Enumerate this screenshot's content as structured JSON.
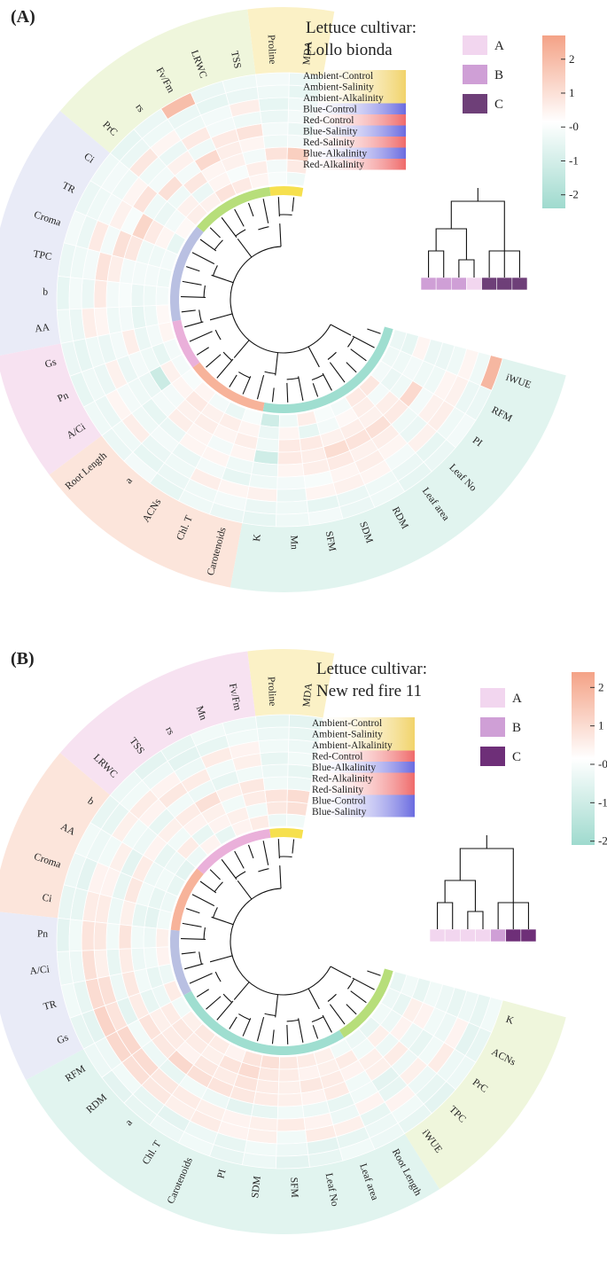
{
  "chart_data": [
    {
      "type": "heatmap",
      "panel": "(A)",
      "title_line1": "Lettuce cultivar:",
      "title_line2": "Lollo bionda",
      "treatments": [
        {
          "name": "Ambient-Control",
          "color": "#f1d36a"
        },
        {
          "name": "Ambient-Salinity",
          "color": "#f1d36a"
        },
        {
          "name": "Ambient-Alkalinity",
          "color": "#f1d36a"
        },
        {
          "name": "Blue-Control",
          "color": "#6a6be0"
        },
        {
          "name": "Red-Control",
          "color": "#ef6a6a"
        },
        {
          "name": "Blue-Salinity",
          "color": "#6a6be0"
        },
        {
          "name": "Red-Salinity",
          "color": "#ef6a6a"
        },
        {
          "name": "Blue-Alkalinity",
          "color": "#6a6be0"
        },
        {
          "name": "Red-Alkalinity",
          "color": "#ef6a6a"
        }
      ],
      "variables": [
        "MDA",
        "Proline",
        "TSS",
        "LRWC",
        "Fv/Fm",
        "rs",
        "PrC",
        "Ci",
        "TR",
        "Croma",
        "TPC",
        "b",
        "AA",
        "Gs",
        "Pn",
        "A/Ci",
        "Root Length",
        "a",
        "ACNs",
        "Chl. T",
        "Carotenoids",
        "K",
        "Mn",
        "SFM",
        "SDM",
        "RDM",
        "Leaf area",
        "Leaf No",
        "PI",
        "RFM",
        "iWUE"
      ],
      "variable_clusters": [
        {
          "count": 2,
          "color": "#f6e04e",
          "sector": "#fbf1c6"
        },
        {
          "count": 5,
          "color": "#b7de7a",
          "sector": "#eff6dc"
        },
        {
          "count": 6,
          "color": "#b9c0e2",
          "sector": "#e9ebf7"
        },
        {
          "count": 3,
          "color": "#eab0da",
          "sector": "#f7e2f1"
        },
        {
          "count": 5,
          "color": "#f7b39a",
          "sector": "#fce5db"
        },
        {
          "count": 10,
          "color": "#9fded0",
          "sector": "#e1f4ef"
        }
      ],
      "treatment_groups": [
        {
          "name": "A",
          "color": "#f2d6ef"
        },
        {
          "name": "B",
          "color": "#cf9fd6"
        },
        {
          "name": "C",
          "color": "#6e3f78"
        }
      ],
      "group_strip": [
        "B",
        "B",
        "B",
        "A",
        "C",
        "C",
        "C"
      ],
      "colorbar": {
        "min": -2.4,
        "max": 2.7,
        "ticks": [
          2,
          1,
          0,
          -1,
          -2
        ],
        "tick_labels": [
          "2",
          "1",
          "-0",
          "-1",
          "-2"
        ]
      },
      "values": [
        [
          -0.4,
          -0.2,
          0.3,
          0.6,
          0.8,
          0.4,
          0.5,
          0.2,
          -0.6,
          -0.3,
          -0.4,
          -0.3,
          0.2,
          0.3,
          -0.3,
          -0.3,
          -0.2,
          0.3,
          -0.3,
          -0.5,
          -0.2,
          -1.2,
          -0.4,
          0.5,
          -0.2,
          -0.3,
          0.6,
          0.7,
          -0.3,
          -0.4,
          -0.5
        ],
        [
          0.6,
          -0.3,
          0.5,
          -0.2,
          0.3,
          -0.5,
          0.4,
          -0.3,
          0.3,
          -0.4,
          -0.3,
          -0.4,
          -0.4,
          -0.3,
          -0.6,
          0.4,
          0.3,
          0.6,
          0.4,
          0.5,
          0.3,
          -0.5,
          0.3,
          -0.6,
          -0.3,
          0.2,
          0.5,
          -0.3,
          -0.5,
          -0.4,
          -0.6
        ],
        [
          1.4,
          0.8,
          -0.3,
          0.4,
          0.3,
          0.7,
          -0.4,
          -0.5,
          0.6,
          -0.4,
          -0.3,
          -0.5,
          -0.6,
          -0.5,
          -0.4,
          -1.3,
          -0.3,
          0.4,
          0.5,
          0.3,
          0.5,
          -0.4,
          0.6,
          0.6,
          0.4,
          0.5,
          0.4,
          0.5,
          -0.4,
          -0.3,
          0.3
        ],
        [
          -0.3,
          -0.4,
          0.3,
          0.5,
          1.1,
          -0.3,
          0.9,
          -0.4,
          1.2,
          0.7,
          -0.3,
          -0.2,
          -0.3,
          0.5,
          -0.3,
          -0.5,
          -0.3,
          0.5,
          0.3,
          -0.3,
          0.3,
          -1.2,
          0.6,
          0.5,
          1.0,
          0.8,
          0.9,
          0.6,
          1.1,
          -0.4,
          -0.5
        ],
        [
          -0.5,
          -0.3,
          0.8,
          0.6,
          -0.4,
          0.4,
          -0.3,
          0.8,
          -0.2,
          0.9,
          0.5,
          -0.3,
          -0.4,
          -0.3,
          -0.5,
          -0.4,
          -0.6,
          -0.5,
          0.3,
          0.3,
          -0.4,
          -0.5,
          0.3,
          0.5,
          0.6,
          0.4,
          0.5,
          -0.4,
          -0.3,
          -0.4,
          -0.5
        ],
        [
          -0.3,
          -0.5,
          -0.4,
          -0.3,
          0.6,
          -0.5,
          -0.4,
          0.3,
          0.4,
          -0.3,
          0.8,
          0.6,
          0.3,
          -0.5,
          0.4,
          -0.3,
          -0.4,
          -0.3,
          -0.5,
          -0.3,
          -0.6,
          -0.4,
          -0.3,
          -0.2,
          0.3,
          0.5,
          0.3,
          -0.5,
          0.4,
          0.3,
          -0.4
        ],
        [
          -0.4,
          -0.6,
          0.5,
          -0.3,
          -0.4,
          0.3,
          0.7,
          -0.4,
          -0.3,
          0.6,
          -0.3,
          -0.5,
          0.5,
          -0.4,
          -0.5,
          0.3,
          0.5,
          -0.5,
          -0.4,
          0.5,
          0.3,
          0.4,
          -0.5,
          0.3,
          0.4,
          0.3,
          -0.3,
          0.4,
          0.5,
          0.4,
          0.3
        ],
        [
          -0.6,
          -0.4,
          -0.5,
          -0.6,
          -0.5,
          -0.4,
          -0.5,
          -0.3,
          -0.4,
          -0.5,
          -0.4,
          -0.3,
          -0.5,
          -0.6,
          -0.4,
          -0.5,
          -0.4,
          -0.6,
          -0.5,
          -0.4,
          -0.3,
          -0.5,
          -0.4,
          -0.6,
          -0.5,
          -0.4,
          -0.5,
          -0.6,
          -0.4,
          -0.5,
          -0.4
        ],
        [
          -0.5,
          -0.3,
          -0.4,
          -0.5,
          1.9,
          -0.5,
          -0.6,
          -0.4,
          -0.5,
          -0.3,
          -0.5,
          -0.6,
          -0.4,
          -0.5,
          -0.6,
          -0.4,
          -0.5,
          -0.3,
          -0.6,
          -0.4,
          -0.5,
          -0.6,
          -0.4,
          -0.3,
          -0.5,
          -0.4,
          -0.6,
          -0.5,
          -0.3,
          -0.5,
          2.1
        ]
      ]
    },
    {
      "type": "heatmap",
      "panel": "(B)",
      "title_line1": "Lettuce cultivar:",
      "title_line2": "New red fire 11",
      "treatments": [
        {
          "name": "Ambient-Control",
          "color": "#f1d36a"
        },
        {
          "name": "Ambient-Salinity",
          "color": "#f1d36a"
        },
        {
          "name": "Ambient-Alkalinity",
          "color": "#f1d36a"
        },
        {
          "name": "Red-Control",
          "color": "#ef6a6a"
        },
        {
          "name": "Blue-Alkalinity",
          "color": "#6a6be0"
        },
        {
          "name": "Red-Alkalinity",
          "color": "#ef6a6a"
        },
        {
          "name": "Red-Salinity",
          "color": "#ef6a6a"
        },
        {
          "name": "Blue-Control",
          "color": "#6a6be0"
        },
        {
          "name": "Blue-Salinity",
          "color": "#6a6be0"
        }
      ],
      "variables": [
        "MDA",
        "Proline",
        "Fv/Fm",
        "Mn",
        "rs",
        "TSS",
        "LRWC",
        "b",
        "AA",
        "Croma",
        "Ci",
        "Pn",
        "A/Ci",
        "TR",
        "Gs",
        "RFM",
        "RDM",
        "a",
        "Chl. T",
        "Carotenoids",
        "PI",
        "SDM",
        "SFM",
        "Leaf No",
        "Leaf area",
        "Root Length",
        "iWUE",
        "TPC",
        "PrC",
        "ACNs",
        "K"
      ],
      "variable_clusters": [
        {
          "count": 2,
          "color": "#f6e04e",
          "sector": "#fbf1c6"
        },
        {
          "count": 5,
          "color": "#eab0da",
          "sector": "#f7e2f1"
        },
        {
          "count": 4,
          "color": "#f7b39a",
          "sector": "#fce5db"
        },
        {
          "count": 4,
          "color": "#b9c0e2",
          "sector": "#e9ebf7"
        },
        {
          "count": 11,
          "color": "#9fded0",
          "sector": "#e1f4ef"
        },
        {
          "count": 5,
          "color": "#b7de7a",
          "sector": "#eff6dc"
        }
      ],
      "treatment_groups": [
        {
          "name": "A",
          "color": "#f2d6ef"
        },
        {
          "name": "B",
          "color": "#cf9fd6"
        },
        {
          "name": "C",
          "color": "#6e2f78"
        }
      ],
      "group_strip": [
        "A",
        "A",
        "A",
        "A",
        "B",
        "C",
        "C"
      ],
      "colorbar": {
        "min": -2.1,
        "max": 2.4,
        "ticks": [
          2,
          1,
          0,
          -1,
          -2
        ],
        "tick_labels": [
          "2",
          "1",
          "-0",
          "-1",
          "-2"
        ]
      },
      "values": [
        [
          -0.3,
          -0.4,
          0.5,
          0.3,
          -0.5,
          0.3,
          -0.4,
          -0.6,
          -0.5,
          -0.4,
          -0.3,
          0.4,
          0.3,
          -0.4,
          0.5,
          -0.3,
          0.4,
          0.6,
          0.5,
          0.3,
          0.7,
          0.8,
          0.6,
          0.5,
          0.4,
          -0.3,
          -0.4,
          -0.5,
          -0.3,
          -0.4,
          -0.5
        ],
        [
          0.8,
          0.6,
          -0.3,
          0.4,
          0.3,
          -0.5,
          0.5,
          -0.4,
          -0.3,
          -0.5,
          -0.6,
          -0.4,
          -0.3,
          -0.5,
          -0.4,
          0.5,
          0.6,
          0.5,
          0.4,
          0.7,
          0.9,
          0.6,
          0.5,
          0.3,
          0.4,
          0.5,
          -0.3,
          0.4,
          -0.4,
          -0.5,
          -0.3
        ],
        [
          0.9,
          0.7,
          0.5,
          -0.3,
          0.4,
          0.3,
          -0.3,
          -0.5,
          -0.4,
          -0.3,
          -0.5,
          -0.3,
          -0.4,
          -0.3,
          -0.5,
          0.4,
          0.5,
          0.3,
          0.6,
          0.5,
          0.7,
          0.5,
          0.4,
          0.6,
          0.5,
          0.3,
          0.4,
          -0.4,
          0.3,
          0.4,
          -0.5
        ],
        [
          -0.4,
          -0.3,
          0.6,
          0.4,
          0.8,
          0.5,
          0.4,
          0.3,
          0.5,
          0.6,
          0.4,
          0.7,
          0.5,
          0.6,
          0.5,
          0.7,
          0.6,
          1.0,
          0.8,
          0.7,
          0.6,
          0.5,
          0.4,
          0.3,
          0.5,
          -0.3,
          0.4,
          0.5,
          -0.4,
          0.3,
          -0.3
        ],
        [
          -0.5,
          -0.4,
          -0.3,
          -0.5,
          -0.4,
          -0.3,
          -0.5,
          -0.4,
          -0.6,
          -0.5,
          -0.4,
          -0.3,
          -0.5,
          -0.4,
          -0.6,
          -0.3,
          -0.4,
          -0.5,
          -0.3,
          -0.4,
          -0.6,
          -0.5,
          -0.3,
          -0.4,
          -0.5,
          -0.3,
          -0.6,
          -0.4,
          -0.5,
          -0.3,
          -0.4
        ],
        [
          -0.3,
          -0.5,
          0.4,
          -0.3,
          0.5,
          0.6,
          0.3,
          -0.3,
          0.4,
          0.3,
          0.5,
          0.6,
          0.4,
          0.8,
          0.7,
          1.0,
          0.9,
          0.6,
          0.5,
          0.4,
          0.3,
          0.4,
          0.5,
          0.3,
          -0.4,
          0.3,
          -0.5,
          0.4,
          -0.3,
          -0.4,
          -0.5
        ],
        [
          -0.4,
          -0.3,
          0.3,
          0.5,
          -0.4,
          0.3,
          0.5,
          0.4,
          -0.3,
          0.3,
          0.5,
          0.7,
          0.8,
          0.9,
          1.1,
          1.0,
          0.8,
          0.6,
          0.4,
          0.5,
          0.3,
          0.4,
          -0.3,
          0.5,
          0.4,
          -0.5,
          0.3,
          -0.4,
          0.5,
          0.3,
          -0.4
        ],
        [
          -0.5,
          -0.4,
          -0.3,
          -0.5,
          -0.6,
          -0.4,
          -0.3,
          -0.5,
          -0.4,
          -0.6,
          -0.5,
          -0.3,
          -0.4,
          -0.5,
          -0.6,
          -0.4,
          -0.3,
          -0.5,
          -0.6,
          -0.4,
          -0.5,
          -0.3,
          -0.4,
          -0.6,
          -0.5,
          -0.4,
          -0.3,
          -0.5,
          -0.4,
          -0.6,
          -0.5
        ],
        [
          -0.6,
          -0.5,
          -0.4,
          -0.3,
          -0.5,
          -0.6,
          -0.4,
          -0.5,
          -0.3,
          -0.4,
          -0.5,
          -0.6,
          -0.4,
          -0.3,
          -0.5,
          -0.4,
          -0.6,
          -0.5,
          -0.4,
          -0.3,
          -0.5,
          -0.4,
          -0.6,
          -0.5,
          -0.3,
          -0.4,
          -0.5,
          -0.6,
          -0.4,
          -0.5,
          -0.3
        ]
      ]
    }
  ]
}
